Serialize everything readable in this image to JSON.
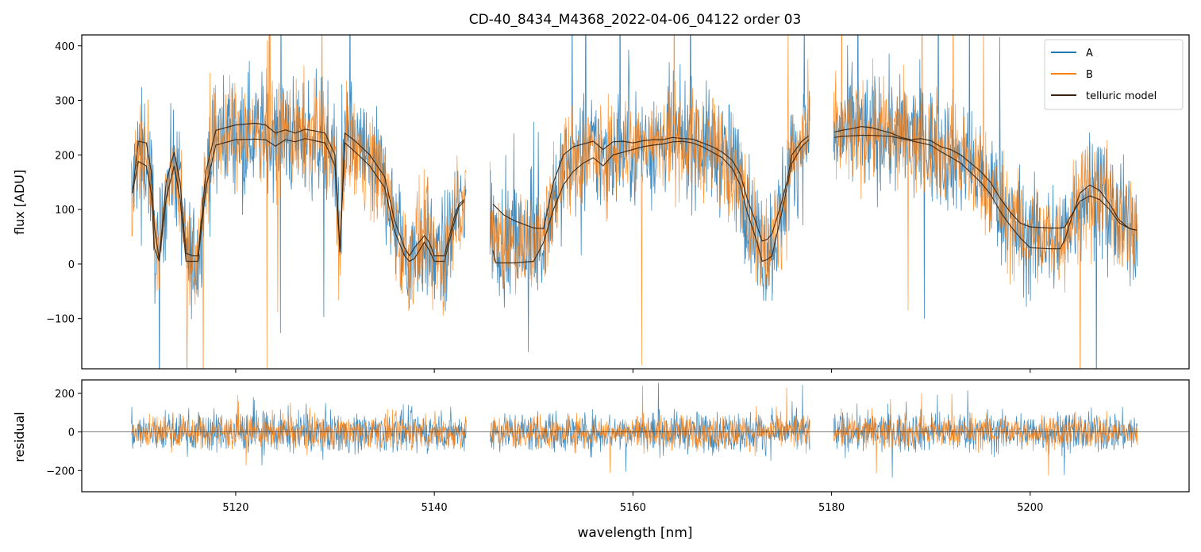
{
  "chart_data": [
    {
      "type": "line",
      "panel": "top",
      "title": "CD-40_8434_M4368_2022-04-06_04122  order 03",
      "xlabel": "",
      "ylabel": "flux [ADU]",
      "xlim": [
        5104.5,
        5216.0
      ],
      "ylim": [
        -192,
        420
      ],
      "xticks": [
        5120,
        5140,
        5160,
        5180,
        5200
      ],
      "yticks": [
        -100,
        0,
        100,
        200,
        300,
        400
      ],
      "ytick_labels": [
        "−100",
        "0",
        "100",
        "200",
        "300",
        "400"
      ],
      "legend_position": "top-right",
      "segments": [
        [
          5109.5,
          5143.2
        ],
        [
          5145.6,
          5177.8
        ],
        [
          5180.2,
          5210.8
        ]
      ],
      "series": [
        {
          "name": "A",
          "color": "#1f77b4",
          "style": "noisy flux",
          "noise_amplitude": 110
        },
        {
          "name": "B",
          "color": "#ff7f0e",
          "style": "noisy flux",
          "noise_amplitude": 100
        },
        {
          "name": "telluric model",
          "color": "#3a2410",
          "curves": [
            {
              "segment": 0,
              "x": [
                5109.6,
                5110.2,
                5111.0,
                5111.5,
                5111.8,
                5112.3,
                5113.0,
                5113.8,
                5114.4,
                5115.0,
                5115.7,
                5116.2,
                5117.0,
                5118.0,
                5120.0,
                5122.0,
                5123.0,
                5124.0,
                5125.0,
                5126.0,
                5127.0,
                5128.0,
                5129.0,
                5130.0,
                5130.5,
                5131.0,
                5132.0,
                5133.5,
                5135.0,
                5136.0,
                5137.0,
                5137.5,
                5138.0,
                5139.0,
                5139.5,
                5140.0,
                5140.5,
                5141.0,
                5142.0,
                5142.5,
                5143.0
              ],
              "y": [
                130,
                225,
                222,
                170,
                70,
                8,
                150,
                205,
                150,
                20,
                15,
                15,
                170,
                245,
                255,
                258,
                255,
                240,
                246,
                240,
                247,
                244,
                240,
                200,
                22,
                240,
                226,
                200,
                160,
                80,
                30,
                15,
                30,
                52,
                40,
                15,
                15,
                15,
                85,
                110,
                118
              ]
            },
            {
              "segment": 0,
              "x": [
                5109.6,
                5110.2,
                5111.0,
                5111.5,
                5111.8,
                5112.3,
                5113.0,
                5113.8,
                5114.4,
                5115.0,
                5115.7,
                5116.2,
                5117.0,
                5118.0,
                5120.0,
                5122.0,
                5123.0,
                5124.0,
                5125.0,
                5126.0,
                5127.0,
                5128.0,
                5129.0,
                5130.0,
                5130.5,
                5131.0,
                5132.0,
                5133.5,
                5135.0,
                5136.0,
                5137.0,
                5137.5,
                5138.0,
                5139.0,
                5139.5,
                5140.0,
                5140.5,
                5141.0,
                5142.0,
                5142.5,
                5143.0
              ],
              "y": [
                130,
                188,
                180,
                130,
                30,
                5,
                120,
                180,
                120,
                5,
                5,
                5,
                140,
                218,
                228,
                229,
                228,
                216,
                228,
                224,
                230,
                226,
                222,
                180,
                28,
                222,
                206,
                180,
                140,
                60,
                15,
                5,
                10,
                40,
                25,
                5,
                5,
                5,
                75,
                105,
                115
              ]
            },
            {
              "segment": 1,
              "x": [
                5145.9,
                5147.0,
                5148.0,
                5150.0,
                5151.0,
                5152.0,
                5153.0,
                5154.0,
                5155.0,
                5156.0,
                5157.0,
                5158.0,
                5159.0,
                5160.0,
                5161.0,
                5162.0,
                5163.0,
                5164.0,
                5165.0,
                5166.0,
                5167.0,
                5168.0,
                5169.0,
                5170.0,
                5170.8,
                5171.5,
                5172.5,
                5173.0,
                5173.5,
                5174.0,
                5175.0,
                5175.5,
                5176.0,
                5177.0,
                5177.7
              ],
              "y": [
                110,
                90,
                80,
                66,
                65,
                150,
                200,
                215,
                220,
                225,
                210,
                224,
                225,
                222,
                226,
                228,
                228,
                232,
                230,
                229,
                222,
                215,
                205,
                190,
                165,
                120,
                70,
                42,
                45,
                55,
                115,
                150,
                200,
                225,
                235
              ]
            },
            {
              "segment": 1,
              "x": [
                5145.9,
                5146.2,
                5147.0,
                5148.0,
                5150.0,
                5151.0,
                5152.0,
                5153.0,
                5154.0,
                5155.0,
                5156.0,
                5157.0,
                5158.0,
                5159.0,
                5160.0,
                5161.0,
                5162.0,
                5163.0,
                5164.0,
                5165.0,
                5166.0,
                5167.0,
                5168.0,
                5169.0,
                5170.0,
                5170.8,
                5171.5,
                5172.5,
                5173.0,
                5173.5,
                5174.0,
                5175.0,
                5175.5,
                5176.0,
                5177.0,
                5177.7
              ],
              "y": [
                25,
                2,
                2,
                2,
                5,
                40,
                100,
                145,
                170,
                185,
                195,
                180,
                200,
                205,
                210,
                215,
                218,
                220,
                224,
                225,
                222,
                215,
                205,
                195,
                175,
                145,
                95,
                40,
                5,
                8,
                15,
                95,
                140,
                185,
                215,
                228
              ]
            },
            {
              "segment": 2,
              "x": [
                5180.3,
                5181.0,
                5182.0,
                5183.0,
                5184.0,
                5185.0,
                5186.0,
                5187.0,
                5188.0,
                5189.0,
                5190.0,
                5191.0,
                5192.0,
                5193.0,
                5194.0,
                5195.0,
                5196.0,
                5197.0,
                5198.0,
                5199.0,
                5200.0,
                5202.0,
                5203.0,
                5203.5,
                5204.0,
                5205.0,
                5206.0,
                5207.0,
                5208.0,
                5209.0,
                5210.0,
                5210.7
              ],
              "y": [
                242,
                245,
                248,
                252,
                250,
                245,
                240,
                232,
                228,
                230,
                226,
                215,
                210,
                200,
                185,
                170,
                150,
                120,
                95,
                75,
                68,
                66,
                66,
                68,
                85,
                115,
                125,
                118,
                100,
                75,
                65,
                62
              ]
            },
            {
              "segment": 2,
              "x": [
                5180.3,
                5181.0,
                5182.0,
                5183.0,
                5184.0,
                5185.0,
                5186.0,
                5187.0,
                5188.0,
                5189.0,
                5190.0,
                5191.0,
                5192.0,
                5193.0,
                5194.0,
                5195.0,
                5196.0,
                5197.0,
                5198.0,
                5199.0,
                5200.0,
                5202.0,
                5203.0,
                5203.5,
                5204.0,
                5205.0,
                5206.0,
                5207.0,
                5208.0,
                5209.0,
                5210.0,
                5210.7
              ],
              "y": [
                232,
                234,
                235,
                236,
                236,
                235,
                234,
                230,
                226,
                222,
                218,
                206,
                196,
                185,
                168,
                150,
                128,
                96,
                70,
                48,
                30,
                28,
                28,
                45,
                75,
                130,
                145,
                135,
                110,
                80,
                65,
                62
              ]
            }
          ]
        }
      ]
    },
    {
      "type": "line",
      "panel": "bottom",
      "xlabel": "wavelength [nm]",
      "ylabel": "residual",
      "xlim": [
        5104.5,
        5216.0
      ],
      "ylim": [
        -310,
        270
      ],
      "xticks": [
        5120,
        5140,
        5160,
        5180,
        5200
      ],
      "xtick_labels": [
        "5120",
        "5140",
        "5160",
        "5180",
        "5200"
      ],
      "yticks": [
        -200,
        0,
        200
      ],
      "ytick_labels": [
        "−200",
        "0",
        "200"
      ],
      "zero_line": true,
      "segments": [
        [
          5109.5,
          5143.2
        ],
        [
          5145.6,
          5177.8
        ],
        [
          5180.2,
          5210.8
        ]
      ],
      "series": [
        {
          "name": "A",
          "color": "#1f77b4",
          "noise_amplitude": 120
        },
        {
          "name": "B",
          "color": "#ff7f0e",
          "noise_amplitude": 100
        }
      ]
    }
  ]
}
